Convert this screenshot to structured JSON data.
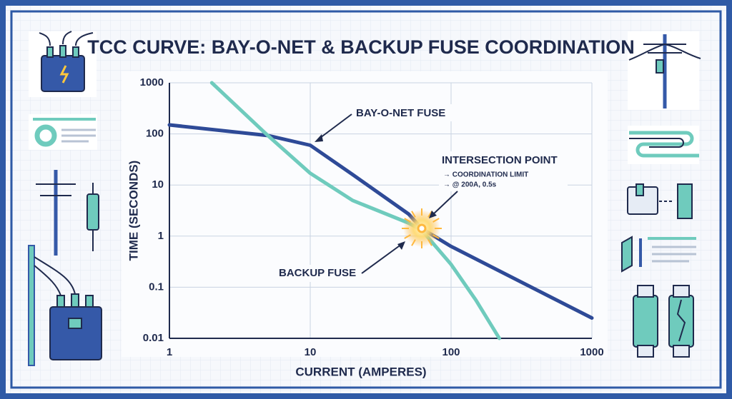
{
  "chart_data": {
    "type": "line",
    "title": "TCC CURVE: BAY-O-NET & BACKUP FUSE COORDINATION",
    "x_label": "CURRENT (AMPERES)",
    "y_label": "TIME (SECONDS)",
    "log_x": true,
    "log_y": true,
    "grid": true,
    "xlim": [
      1,
      1000
    ],
    "xticks": [
      1,
      10,
      100,
      1000
    ],
    "ylim": [
      0.01,
      1000
    ],
    "yticks": [
      0.01,
      0.1,
      1,
      10,
      100,
      1000
    ],
    "series": [
      {
        "name": "BAY-O-NET FUSE",
        "color": "#2e4a97",
        "x": [
          1,
          5,
          10,
          20,
          50,
          62,
          100,
          1000
        ],
        "values": [
          150,
          93,
          60,
          16,
          2.7,
          1.4,
          0.63,
          0.025
        ]
      },
      {
        "name": "BACKUP FUSE",
        "color": "#6fcbbd",
        "x": [
          2,
          5,
          10,
          20,
          50,
          62,
          100,
          150,
          220
        ],
        "values": [
          1000,
          93,
          17,
          5,
          1.8,
          1.3,
          0.28,
          0.056,
          0.01
        ]
      }
    ],
    "annotations": [
      "INTERSECTION POINT",
      "→ COORDINATION LIMIT",
      "→ @ 200A, 0.5s"
    ]
  }
}
